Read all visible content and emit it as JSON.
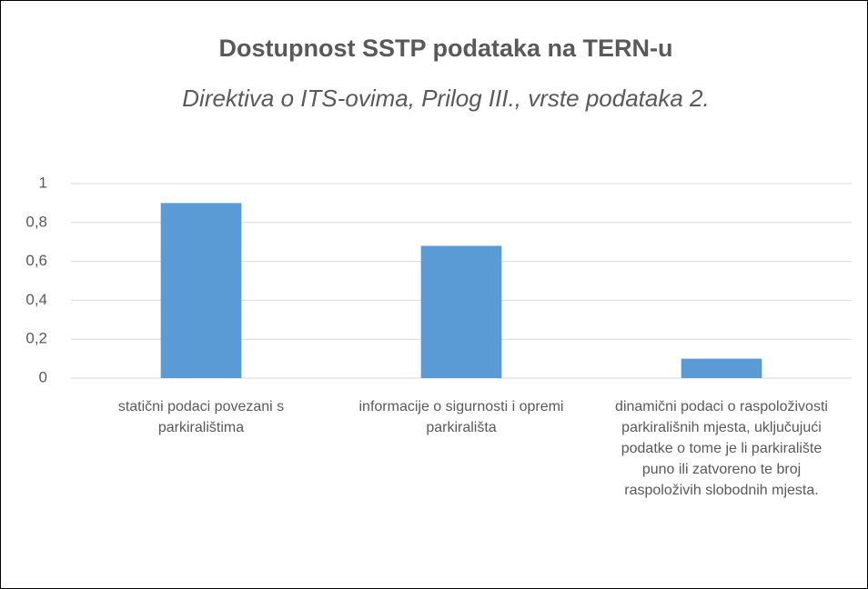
{
  "chart_data": {
    "type": "bar",
    "title": "Dostupnost SSTP podataka na TERN-u",
    "subtitle": "Direktiva o ITS-ovima, Prilog III., vrste podataka 2.",
    "categories": [
      "statični podaci povezani s parkiralištima",
      "informacije o sigurnosti i opremi parkirališta",
      "dinamični podaci o raspoloživosti parkirališnih mjesta, uključujući podatke o tome je li parkiralište puno ili zatvoreno te broj raspoloživih slobodnih mjesta."
    ],
    "values": [
      0.9,
      0.68,
      0.1
    ],
    "color": "#5b9bd5",
    "ylim": [
      0,
      1
    ],
    "yticks": [
      0,
      {
        "value": 0.2,
        "label": "0,2"
      },
      {
        "value": 0.4,
        "label": "0,4"
      },
      {
        "value": 0.6,
        "label": "0,6"
      },
      {
        "value": 0.8,
        "label": "0,8"
      },
      1
    ],
    "grid": true
  }
}
